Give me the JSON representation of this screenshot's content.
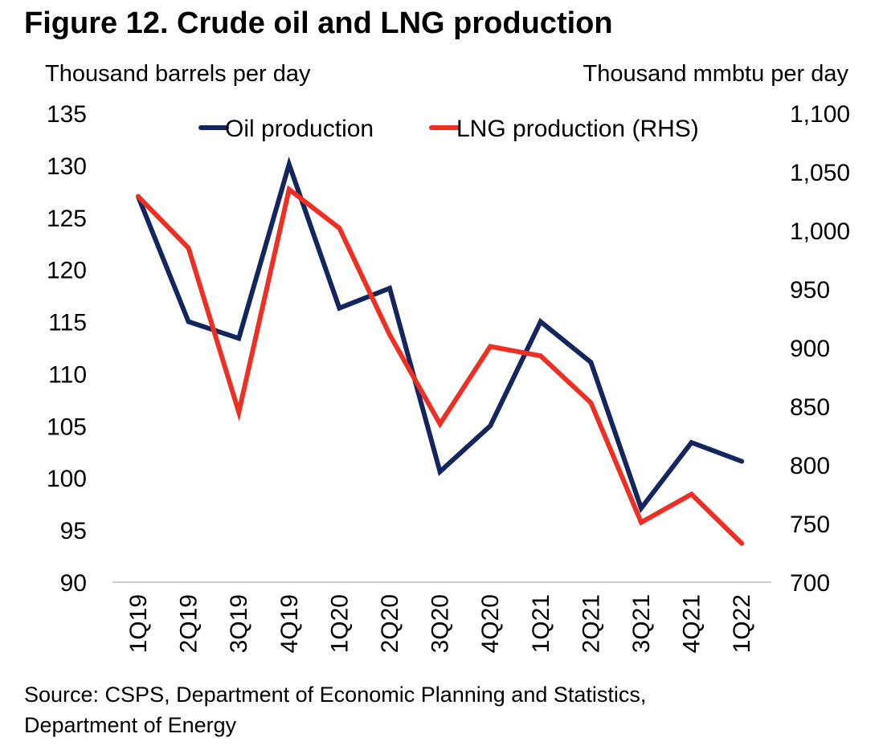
{
  "title": "Figure 12. Crude oil and LNG production",
  "source": {
    "line1": "Source: CSPS, Department of Economic Planning and Statistics,",
    "line2": "Department of Energy"
  },
  "chart_data": {
    "type": "line",
    "title": "Figure 12. Crude oil and LNG production",
    "categories": [
      "1Q19",
      "2Q19",
      "3Q19",
      "4Q19",
      "1Q20",
      "2Q20",
      "3Q20",
      "4Q20",
      "1Q21",
      "2Q21",
      "3Q21",
      "4Q21",
      "1Q22"
    ],
    "ylabel_left": "Thousand barrels per day",
    "ylabel_right": "Thousand mmbtu per day",
    "ylim_left": [
      90,
      135
    ],
    "ylim_right": [
      700,
      1100
    ],
    "yticks_left": [
      "135",
      "130",
      "125",
      "120",
      "115",
      "110",
      "105",
      "100",
      "95",
      "90"
    ],
    "yticks_right": [
      "1,100",
      "1,050",
      "1,000",
      "950",
      "900",
      "850",
      "800",
      "750",
      "700"
    ],
    "grid": false,
    "legend_position": "top",
    "series": [
      {
        "name": "Oil production",
        "axis": "left",
        "color": "#14265e",
        "values": [
          127.0,
          115.0,
          113.4,
          130.1,
          116.3,
          118.2,
          100.6,
          105.0,
          115.0,
          111.1,
          97.1,
          103.4,
          101.6
        ]
      },
      {
        "name": "LNG production (RHS)",
        "axis": "right",
        "color": "#ee3024",
        "values": [
          1029,
          985,
          845,
          1035,
          1002,
          911,
          835,
          901,
          893,
          853,
          751,
          775,
          733
        ]
      }
    ]
  }
}
